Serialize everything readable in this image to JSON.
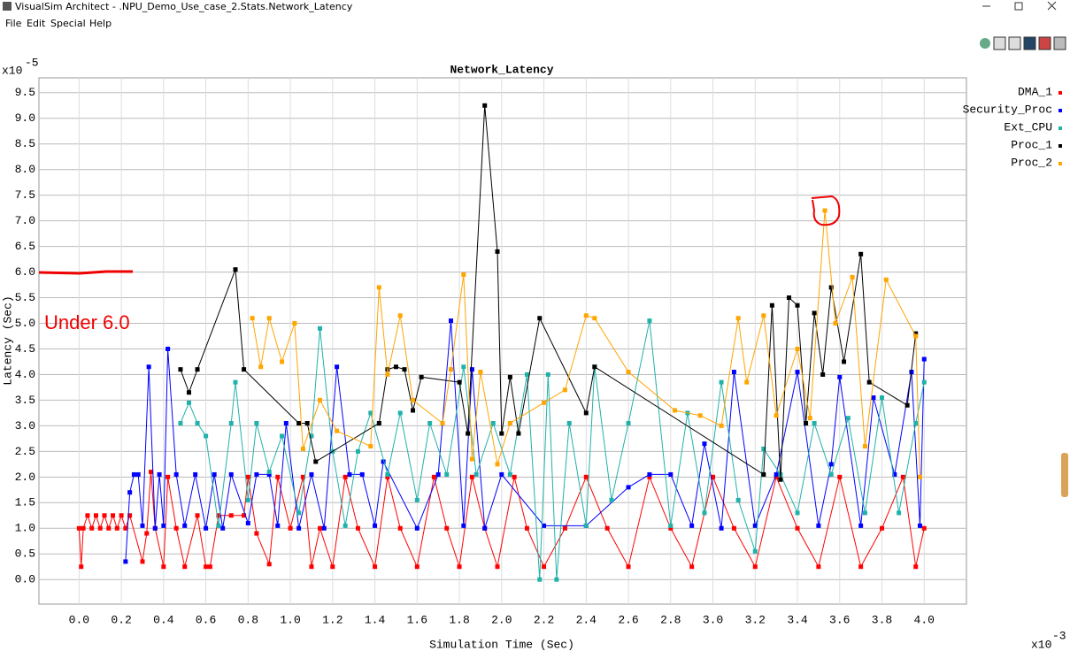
{
  "window": {
    "title": "VisualSim Architect - .NPU_Demo_Use_case_2.Stats.Network_Latency",
    "menu": [
      "File",
      "Edit",
      "Special",
      "Help"
    ]
  },
  "chart_data": {
    "type": "line",
    "title": "Network_Latency",
    "x_label": "Simulation Time (Sec)",
    "y_label": "Latency (Sec)",
    "y_multiplier": {
      "base": "x10",
      "exponent": "-5"
    },
    "x_multiplier": {
      "base": "x10",
      "exponent": "-3"
    },
    "xlim": [
      -0.19,
      4.2
    ],
    "ylim": [
      -0.48,
      9.79
    ],
    "grid": true,
    "legend": "right",
    "xticks": [
      {
        "value": 0,
        "label": "0.0"
      },
      {
        "value": 0.2,
        "label": "0.2"
      },
      {
        "value": 0.4,
        "label": "0.4"
      },
      {
        "value": 0.6,
        "label": "0.6"
      },
      {
        "value": 0.8,
        "label": "0.8"
      },
      {
        "value": 1,
        "label": "1.0"
      },
      {
        "value": 1.2,
        "label": "1.2"
      },
      {
        "value": 1.4,
        "label": "1.4"
      },
      {
        "value": 1.6,
        "label": "1.6"
      },
      {
        "value": 1.8,
        "label": "1.8"
      },
      {
        "value": 2,
        "label": "2.0"
      },
      {
        "value": 2.2,
        "label": "2.2"
      },
      {
        "value": 2.4,
        "label": "2.4"
      },
      {
        "value": 2.6,
        "label": "2.6"
      },
      {
        "value": 2.8,
        "label": "2.8"
      },
      {
        "value": 3,
        "label": "3.0"
      },
      {
        "value": 3.2,
        "label": "3.2"
      },
      {
        "value": 3.4,
        "label": "3.4"
      },
      {
        "value": 3.6,
        "label": "3.6"
      },
      {
        "value": 3.8,
        "label": "3.8"
      },
      {
        "value": 4,
        "label": "4.0"
      }
    ],
    "yticks": [
      {
        "value": 0,
        "label": "0.0"
      },
      {
        "value": 0.5,
        "label": "0.5"
      },
      {
        "value": 1,
        "label": "1.0"
      },
      {
        "value": 1.5,
        "label": "1.5"
      },
      {
        "value": 2,
        "label": "2.0"
      },
      {
        "value": 2.5,
        "label": "2.5"
      },
      {
        "value": 3,
        "label": "3.0"
      },
      {
        "value": 3.5,
        "label": "3.5"
      },
      {
        "value": 4,
        "label": "4.0"
      },
      {
        "value": 4.5,
        "label": "4.5"
      },
      {
        "value": 5,
        "label": "5.0"
      },
      {
        "value": 5.5,
        "label": "5.5"
      },
      {
        "value": 6,
        "label": "6.0"
      },
      {
        "value": 6.5,
        "label": "6.5"
      },
      {
        "value": 7,
        "label": "7.0"
      },
      {
        "value": 7.5,
        "label": "7.5"
      },
      {
        "value": 8,
        "label": "8.0"
      },
      {
        "value": 8.5,
        "label": "8.5"
      },
      {
        "value": 9,
        "label": "9.0"
      },
      {
        "value": 9.5,
        "label": "9.5"
      }
    ],
    "series": [
      {
        "name": "DMA_1",
        "color": "#ff0000",
        "x": [
          0.0,
          0.01,
          0.02,
          0.04,
          0.06,
          0.08,
          0.1,
          0.12,
          0.14,
          0.16,
          0.18,
          0.2,
          0.22,
          0.24,
          0.3,
          0.32,
          0.34,
          0.36,
          0.4,
          0.42,
          0.46,
          0.5,
          0.56,
          0.6,
          0.62,
          0.66,
          0.72,
          0.78,
          0.8,
          0.84,
          0.9,
          0.94,
          1.0,
          1.06,
          1.1,
          1.14,
          1.2,
          1.26,
          1.32,
          1.4,
          1.46,
          1.52,
          1.6,
          1.68,
          1.74,
          1.8,
          1.86,
          1.92,
          1.98,
          2.06,
          2.12,
          2.2,
          2.3,
          2.4,
          2.5,
          2.6,
          2.7,
          2.8,
          2.9,
          3.0,
          3.1,
          3.2,
          3.3,
          3.4,
          3.5,
          3.6,
          3.7,
          3.8,
          3.9,
          3.96,
          4.0
        ],
        "values": [
          1.0,
          0.25,
          1.0,
          1.25,
          1.0,
          1.25,
          1.0,
          1.25,
          1.0,
          1.25,
          1.0,
          1.25,
          1.0,
          1.25,
          0.35,
          0.9,
          2.1,
          1.0,
          0.25,
          2.0,
          1.0,
          0.25,
          1.25,
          0.25,
          0.25,
          1.25,
          1.25,
          1.25,
          2.0,
          0.9,
          0.3,
          2.0,
          1.0,
          2.0,
          0.25,
          1.0,
          0.25,
          2.0,
          1.0,
          0.25,
          2.0,
          1.0,
          0.25,
          2.0,
          1.0,
          0.25,
          2.0,
          1.0,
          0.25,
          2.0,
          1.0,
          0.25,
          1.0,
          2.0,
          1.0,
          0.25,
          2.0,
          1.0,
          0.25,
          2.0,
          1.0,
          0.25,
          2.0,
          1.0,
          0.25,
          2.0,
          0.25,
          1.0,
          2.0,
          0.25,
          1.0
        ]
      },
      {
        "name": "Security_Proc",
        "color": "#0000ff",
        "x": [
          0.22,
          0.24,
          0.26,
          0.28,
          0.3,
          0.33,
          0.36,
          0.38,
          0.4,
          0.42,
          0.46,
          0.5,
          0.55,
          0.6,
          0.64,
          0.68,
          0.72,
          0.8,
          0.84,
          0.9,
          0.94,
          0.98,
          1.04,
          1.1,
          1.16,
          1.22,
          1.28,
          1.34,
          1.4,
          1.44,
          1.6,
          1.7,
          1.76,
          1.82,
          1.86,
          1.92,
          2.0,
          2.2,
          2.4,
          2.6,
          2.7,
          2.8,
          2.9,
          2.96,
          3.04,
          3.1,
          3.2,
          3.3,
          3.4,
          3.5,
          3.56,
          3.6,
          3.7,
          3.76,
          3.86,
          3.94,
          3.98,
          4.0
        ],
        "values": [
          0.35,
          1.7,
          2.05,
          2.05,
          1.05,
          4.15,
          1.0,
          2.05,
          1.05,
          4.5,
          2.05,
          1.05,
          2.05,
          1.0,
          2.05,
          1.0,
          2.05,
          1.1,
          2.05,
          2.05,
          1.05,
          3.05,
          1.0,
          2.05,
          1.0,
          4.15,
          2.05,
          2.05,
          1.05,
          2.3,
          1.0,
          2.05,
          5.05,
          1.05,
          4.1,
          1.0,
          2.05,
          1.05,
          1.05,
          1.8,
          2.05,
          2.05,
          1.05,
          2.65,
          1.0,
          4.05,
          1.05,
          2.05,
          4.05,
          1.05,
          2.25,
          3.95,
          1.05,
          3.55,
          2.05,
          4.05,
          1.05,
          4.3
        ]
      },
      {
        "name": "Ext_CPU",
        "color": "#20b2aa",
        "x": [
          0.48,
          0.52,
          0.56,
          0.6,
          0.66,
          0.72,
          0.74,
          0.8,
          0.84,
          0.9,
          0.96,
          1.04,
          1.1,
          1.14,
          1.2,
          1.26,
          1.32,
          1.38,
          1.46,
          1.52,
          1.6,
          1.66,
          1.74,
          1.82,
          1.88,
          1.96,
          2.04,
          2.12,
          2.18,
          2.22,
          2.26,
          2.32,
          2.4,
          2.44,
          2.52,
          2.6,
          2.7,
          2.8,
          2.88,
          2.96,
          3.04,
          3.12,
          3.2,
          3.24,
          3.32,
          3.4,
          3.48,
          3.56,
          3.64,
          3.72,
          3.8,
          3.88,
          3.96,
          4.0
        ],
        "values": [
          3.05,
          3.45,
          3.05,
          2.8,
          1.05,
          3.05,
          3.85,
          1.55,
          3.05,
          2.1,
          2.8,
          1.3,
          2.8,
          4.9,
          2.5,
          1.05,
          2.5,
          3.25,
          2.05,
          3.25,
          1.55,
          3.05,
          2.05,
          4.15,
          2.05,
          3.05,
          2.05,
          4.0,
          0.0,
          4.0,
          0.0,
          3.05,
          1.05,
          4.15,
          1.55,
          3.05,
          5.05,
          1.05,
          3.25,
          1.3,
          3.85,
          1.55,
          0.55,
          2.55,
          2.05,
          1.3,
          3.05,
          2.05,
          3.15,
          1.3,
          3.55,
          1.3,
          3.05,
          3.85
        ]
      },
      {
        "name": "Proc_1",
        "color": "#000000",
        "x": [
          0.48,
          0.52,
          0.56,
          0.74,
          0.78,
          1.04,
          1.08,
          1.12,
          1.42,
          1.46,
          1.5,
          1.54,
          1.58,
          1.62,
          1.8,
          1.84,
          1.92,
          1.98,
          2.0,
          2.04,
          2.08,
          2.18,
          2.4,
          2.44,
          3.24,
          3.28,
          3.32,
          3.36,
          3.4,
          3.44,
          3.48,
          3.52,
          3.56,
          3.62,
          3.7,
          3.74,
          3.92,
          3.96
        ],
        "values": [
          4.1,
          3.65,
          4.1,
          6.05,
          4.1,
          3.05,
          3.05,
          2.3,
          3.05,
          4.1,
          4.15,
          4.1,
          3.3,
          3.95,
          3.85,
          2.85,
          9.25,
          6.4,
          2.85,
          3.95,
          2.85,
          5.1,
          3.25,
          4.15,
          2.05,
          5.35,
          1.95,
          5.5,
          5.35,
          3.05,
          5.2,
          4.0,
          5.7,
          4.25,
          6.35,
          3.85,
          3.4,
          4.8
        ]
      },
      {
        "name": "Proc_2",
        "color": "#ffa500",
        "x": [
          0.82,
          0.86,
          0.9,
          0.96,
          1.02,
          1.06,
          1.14,
          1.22,
          1.38,
          1.42,
          1.46,
          1.52,
          1.58,
          1.72,
          1.76,
          1.82,
          1.86,
          1.9,
          1.98,
          2.04,
          2.2,
          2.3,
          2.4,
          2.44,
          2.6,
          2.82,
          2.94,
          3.04,
          3.12,
          3.16,
          3.24,
          3.3,
          3.4,
          3.46,
          3.53,
          3.58,
          3.66,
          3.72,
          3.82,
          3.96,
          3.98
        ],
        "values": [
          5.1,
          4.15,
          5.1,
          4.25,
          5.0,
          2.55,
          3.5,
          2.9,
          2.6,
          5.7,
          4.0,
          5.15,
          3.5,
          3.05,
          4.1,
          5.95,
          2.35,
          4.05,
          2.25,
          3.05,
          3.45,
          3.7,
          5.15,
          5.1,
          4.05,
          3.3,
          3.2,
          3.0,
          5.1,
          3.85,
          5.15,
          3.2,
          4.5,
          3.15,
          7.2,
          5.0,
          5.9,
          2.6,
          5.85,
          4.75,
          2.0
        ]
      }
    ]
  },
  "annotations": {
    "note": "Under 6.0"
  }
}
